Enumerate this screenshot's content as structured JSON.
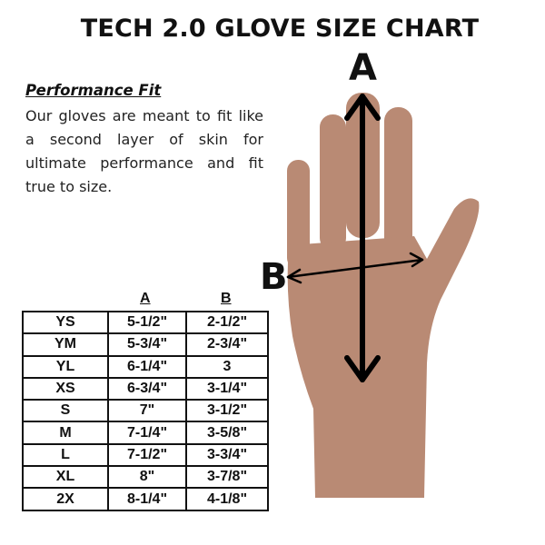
{
  "title": "TECH 2.0 GLOVE SIZE CHART",
  "fit": {
    "heading": "Performance Fit",
    "text": "Our gloves are meant to fit like a second layer of skin for ultimate performance and fit true to size."
  },
  "diagram": {
    "label_a": "A",
    "label_b": "B",
    "skin_color": "#b98a74"
  },
  "table": {
    "headers": [
      "A",
      "B"
    ],
    "rows": [
      {
        "size": "YS",
        "a": "5-1/2\"",
        "b": "2-1/2\""
      },
      {
        "size": "YM",
        "a": "5-3/4\"",
        "b": "2-3/4\""
      },
      {
        "size": "YL",
        "a": "6-1/4\"",
        "b": "3"
      },
      {
        "size": "XS",
        "a": "6-3/4\"",
        "b": "3-1/4\""
      },
      {
        "size": "S",
        "a": "7\"",
        "b": "3-1/2\""
      },
      {
        "size": "M",
        "a": "7-1/4\"",
        "b": "3-5/8\""
      },
      {
        "size": "L",
        "a": "7-1/2\"",
        "b": "3-3/4\""
      },
      {
        "size": "XL",
        "a": "8\"",
        "b": "3-7/8\""
      },
      {
        "size": "2X",
        "a": "8-1/4\"",
        "b": "4-1/8\""
      }
    ]
  }
}
